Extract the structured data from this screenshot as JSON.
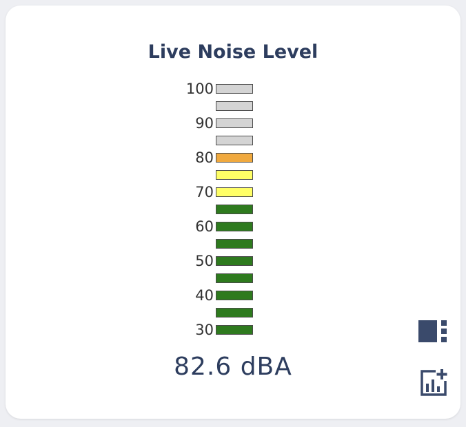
{
  "widget": {
    "title": "Live Noise Level",
    "reading": "82.6 dBA",
    "value": 82.6,
    "unit": "dBA"
  },
  "meter": {
    "min": 30,
    "max": 100,
    "step": 5,
    "tick_labels": [
      "100",
      "90",
      "80",
      "70",
      "60",
      "50",
      "40",
      "30"
    ],
    "segments": [
      {
        "level": 100,
        "color": "#d4d4d4"
      },
      {
        "level": 95,
        "color": "#d4d4d4"
      },
      {
        "level": 90,
        "color": "#d4d4d4"
      },
      {
        "level": 85,
        "color": "#d4d4d4"
      },
      {
        "level": 80,
        "color": "#f0a93e"
      },
      {
        "level": 75,
        "color": "#ffff66"
      },
      {
        "level": 70,
        "color": "#ffff66"
      },
      {
        "level": 65,
        "color": "#2e7a1e"
      },
      {
        "level": 60,
        "color": "#2e7a1e"
      },
      {
        "level": 55,
        "color": "#2e7a1e"
      },
      {
        "level": 50,
        "color": "#2e7a1e"
      },
      {
        "level": 45,
        "color": "#2e7a1e"
      },
      {
        "level": 40,
        "color": "#2e7a1e"
      },
      {
        "level": 35,
        "color": "#2e7a1e"
      },
      {
        "level": 30,
        "color": "#2e7a1e"
      }
    ]
  },
  "controls": {
    "layout_icon": "view-quilt-icon",
    "add_chart_icon": "add-chart-icon",
    "icon_color": "#3a4a6b"
  }
}
